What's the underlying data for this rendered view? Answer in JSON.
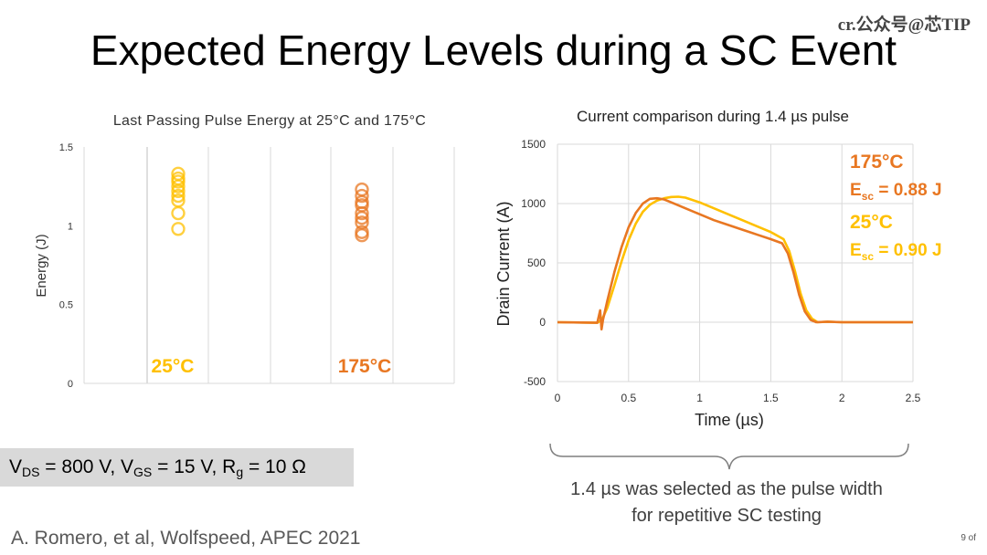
{
  "title": "Expected Energy Levels during a SC Event",
  "watermark": "cr.公众号@芯TIP",
  "parameters": "VDS = 800 V, VGS = 15 V, Rg  = 10 Ω",
  "parameters_parts": {
    "v1": "V",
    "v1_sub": "DS",
    "v1_val": " = 800 V, ",
    "v2": "V",
    "v2_sub": "GS",
    "v2_val": " = 15 V, ",
    "v3": "R",
    "v3_sub": "g",
    "v3_val": "  = 10 Ω"
  },
  "citation": "A. Romero, et al, Wolfspeed, APEC 2021",
  "note": "1.4 µs was selected as the pulse width for repetitive SC testing",
  "note_lines": [
    "1.4 µs was selected as the pulse width",
    "for repetitive SC testing"
  ],
  "page_number": "9 of",
  "colors": {
    "orange": "#E87722",
    "yellow": "#FFC000",
    "grid": "#d9d9d9",
    "axis_text": "#595959"
  },
  "chart_data": [
    {
      "type": "scatter",
      "title": "Last Passing Pulse Energy at 25°C and 175°C",
      "ylabel": "Energy  (J)",
      "xlabel": "",
      "ylim": [
        0,
        1.5
      ],
      "yticks": [
        "0",
        "0.5",
        "1",
        "1.5"
      ],
      "series": [
        {
          "name": "25°C",
          "color": "#FFC000",
          "values": [
            0.98,
            1.08,
            1.16,
            1.19,
            1.22,
            1.25,
            1.28,
            1.3,
            1.33
          ]
        },
        {
          "name": "175°C",
          "color": "#E87722",
          "values": [
            0.94,
            0.96,
            1.02,
            1.05,
            1.08,
            1.13,
            1.15,
            1.19,
            1.23
          ]
        }
      ]
    },
    {
      "type": "line",
      "title": "Current comparison during 1.4 µs pulse",
      "xlabel": "Time (µs)",
      "ylabel": "Drain Current (A)",
      "xlim": [
        0,
        2.5
      ],
      "ylim": [
        -500,
        1500
      ],
      "xticks": [
        "0",
        "0.5",
        "1",
        "1.5",
        "2",
        "2.5"
      ],
      "yticks": [
        "-500",
        "0",
        "500",
        "1000",
        "1500"
      ],
      "annotations": [
        "175°C",
        "Esc = 0.88 J",
        "25°C",
        "Esc = 0.90 J"
      ],
      "annotation_parts": {
        "t175": "175°C",
        "e175_prefix": "E",
        "e175_sub": "sc",
        "e175_val": " = 0.88 J",
        "t25": "25°C",
        "e25_prefix": "E",
        "e25_sub": "sc",
        "e25_val": " = 0.90 J"
      },
      "series": [
        {
          "name": "175°C",
          "color": "#E87722",
          "x": [
            0,
            0.28,
            0.3,
            0.31,
            0.32,
            0.35,
            0.4,
            0.45,
            0.5,
            0.55,
            0.6,
            0.65,
            0.7,
            0.75,
            0.8,
            0.9,
            1.0,
            1.1,
            1.2,
            1.3,
            1.4,
            1.5,
            1.58,
            1.62,
            1.66,
            1.7,
            1.74,
            1.78,
            1.82,
            1.9,
            2.0,
            2.2,
            2.5
          ],
          "y": [
            0,
            -5,
            100,
            -60,
            20,
            180,
            420,
            630,
            800,
            920,
            1000,
            1040,
            1045,
            1035,
            1010,
            960,
            910,
            860,
            820,
            780,
            740,
            700,
            665,
            580,
            420,
            230,
            90,
            20,
            0,
            5,
            0,
            0,
            0
          ]
        },
        {
          "name": "25°C",
          "color": "#FFC000",
          "x": [
            0,
            0.28,
            0.3,
            0.32,
            0.35,
            0.4,
            0.45,
            0.5,
            0.55,
            0.6,
            0.65,
            0.7,
            0.75,
            0.8,
            0.85,
            0.9,
            1.0,
            1.1,
            1.2,
            1.3,
            1.4,
            1.5,
            1.59,
            1.63,
            1.67,
            1.71,
            1.75,
            1.79,
            1.83,
            1.9,
            2.0,
            2.2,
            2.5
          ],
          "y": [
            0,
            -5,
            10,
            40,
            120,
            310,
            510,
            690,
            830,
            930,
            990,
            1025,
            1045,
            1055,
            1058,
            1050,
            1010,
            960,
            910,
            860,
            810,
            760,
            700,
            600,
            430,
            240,
            100,
            30,
            0,
            5,
            0,
            0,
            0
          ]
        }
      ]
    }
  ]
}
